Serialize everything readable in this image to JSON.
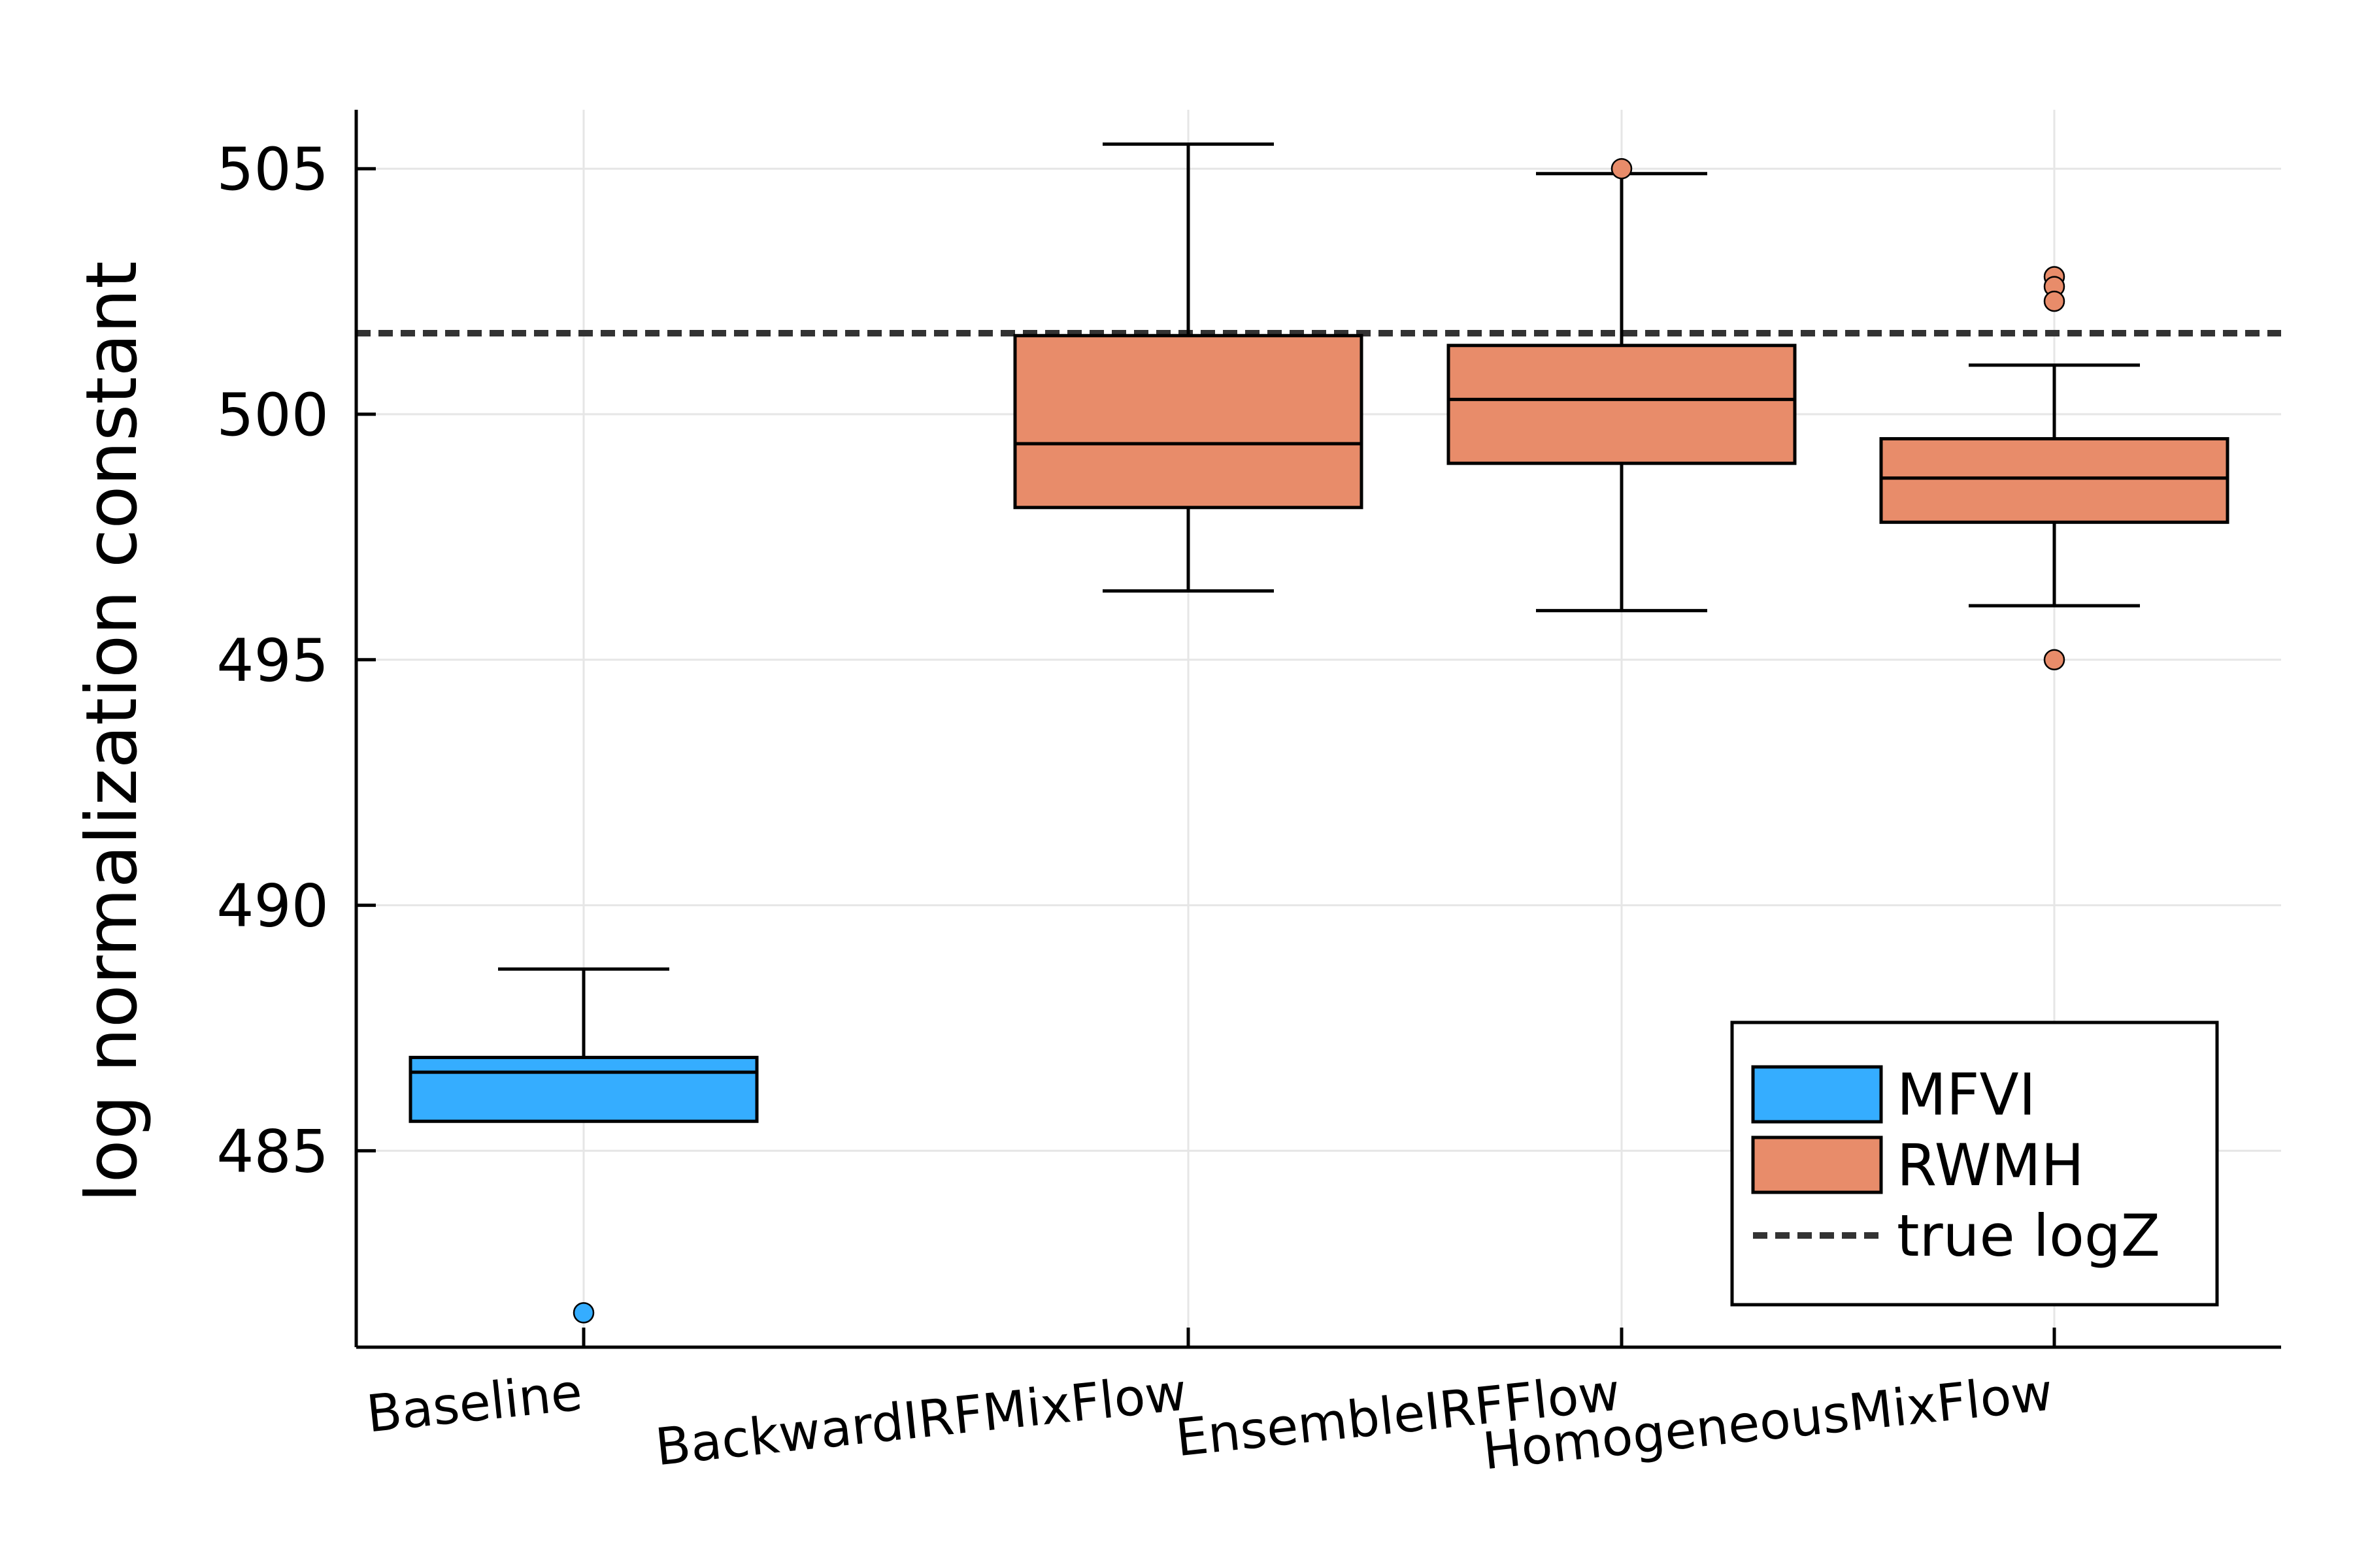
{
  "chart_data": {
    "type": "box",
    "ylabel": "log normalization constant",
    "xlabel": "",
    "title": "",
    "ylim": [
      481,
      506.2
    ],
    "yticks": [
      485,
      490,
      495,
      500,
      505
    ],
    "grid": true,
    "legend_position": "bottom-right",
    "categories": [
      "Baseline",
      "BackwardIRFMixFlow",
      "EnsembleIRFFlow",
      "HomogeneousMixFlow"
    ],
    "series": [
      {
        "name": "MFVI",
        "color": "#35adff",
        "boxes": [
          {
            "category": "Baseline",
            "whisker_low": 485.6,
            "q1": 485.6,
            "median": 486.6,
            "q3": 486.9,
            "whisker_high": 488.7,
            "outliers": [
              481.7
            ]
          }
        ]
      },
      {
        "name": "RWMH",
        "color": "#e88c6a",
        "boxes": [
          {
            "category": "BackwardIRFMixFlow",
            "whisker_low": 496.4,
            "q1": 498.1,
            "median": 499.4,
            "q3": 501.6,
            "whisker_high": 505.5,
            "outliers": []
          },
          {
            "category": "EnsembleIRFFlow",
            "whisker_low": 496.0,
            "q1": 499.0,
            "median": 500.3,
            "q3": 501.4,
            "whisker_high": 504.9,
            "outliers": [
              505.0
            ]
          },
          {
            "category": "HomogeneousMixFlow",
            "whisker_low": 496.1,
            "q1": 497.8,
            "median": 498.7,
            "q3": 499.5,
            "whisker_high": 501.0,
            "outliers": [
              502.8,
              502.6,
              502.3,
              495.0
            ]
          }
        ]
      }
    ],
    "reference_line": {
      "name": "true logZ",
      "value": 501.65,
      "style": "dashed",
      "color": "#333333"
    }
  },
  "legend": {
    "items": [
      {
        "label": "MFVI",
        "color": "#35adff",
        "kind": "box"
      },
      {
        "label": "RWMH",
        "color": "#e88c6a",
        "kind": "box"
      },
      {
        "label": "true logZ",
        "color": "#333333",
        "kind": "dashed-line"
      }
    ]
  }
}
